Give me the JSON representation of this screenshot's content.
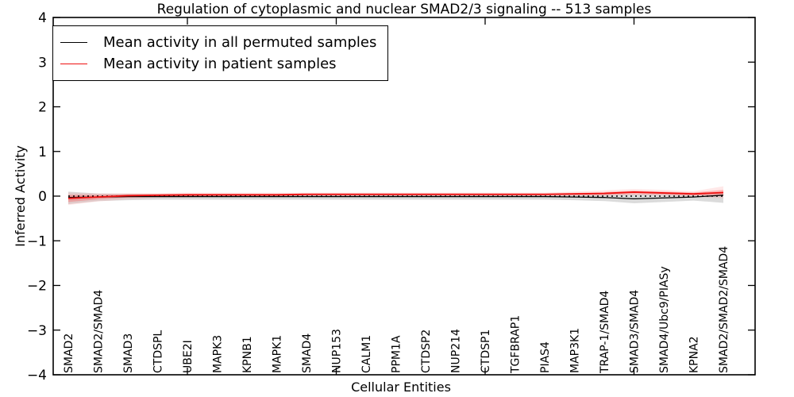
{
  "title": "Regulation of cytoplasmic and nuclear SMAD2/3 signaling -- 513 samples",
  "chart_data": {
    "type": "line",
    "title": "Regulation of cytoplasmic and nuclear SMAD2/3 signaling -- 513 samples",
    "xlabel": "Cellular Entities",
    "ylabel": "Inferred Activity",
    "ylim": [
      -4,
      4
    ],
    "yticks": [
      -4,
      -3,
      -2,
      -1,
      0,
      1,
      2,
      3,
      4
    ],
    "ytick_labels": [
      "−4",
      "−3",
      "−2",
      "−1",
      "0",
      "1",
      "2",
      "3",
      "4"
    ],
    "grid": false,
    "legend_position": "upper left",
    "zero_line": {
      "show": true,
      "style": "dotted",
      "color": "#000000",
      "y": 0
    },
    "x_axis_tick_indices": [
      4,
      9,
      14,
      19
    ],
    "categories": [
      "SMAD2",
      "SMAD2/SMAD4",
      "SMAD3",
      "CTDSPL",
      "UBE2I",
      "MAPK3",
      "KPNB1",
      "MAPK1",
      "SMAD4",
      "NUP153",
      "CALM1",
      "PPM1A",
      "CTDSP2",
      "NUP214",
      "CTDSP1",
      "TGFBRAP1",
      "PIAS4",
      "MAP3K1",
      "TRAP-1/SMAD4",
      "SMAD3/SMAD4",
      "SMAD4/Ubc9/PIASy",
      "KPNA2",
      "SMAD2/SMAD2/SMAD4"
    ],
    "series": [
      {
        "name": "Mean activity in all permuted samples",
        "color": "#000000",
        "line_style": "solid",
        "values": [
          -0.03,
          -0.02,
          -0.01,
          -0.01,
          -0.01,
          -0.01,
          -0.01,
          -0.01,
          -0.01,
          -0.01,
          -0.01,
          -0.01,
          -0.01,
          -0.01,
          -0.01,
          -0.01,
          -0.01,
          -0.02,
          -0.03,
          -0.06,
          -0.04,
          -0.02,
          0.02
        ],
        "band": {
          "color": "#7f7f7f",
          "opacity": 0.28,
          "upper": [
            0.1,
            0.06,
            0.05,
            0.04,
            0.04,
            0.04,
            0.04,
            0.04,
            0.04,
            0.04,
            0.04,
            0.04,
            0.04,
            0.04,
            0.04,
            0.04,
            0.04,
            0.04,
            0.05,
            0.05,
            0.05,
            0.06,
            0.08
          ],
          "lower": [
            -0.18,
            -0.11,
            -0.09,
            -0.08,
            -0.08,
            -0.08,
            -0.08,
            -0.08,
            -0.08,
            -0.08,
            -0.08,
            -0.08,
            -0.08,
            -0.08,
            -0.08,
            -0.08,
            -0.08,
            -0.09,
            -0.11,
            -0.16,
            -0.13,
            -0.1,
            -0.15
          ]
        }
      },
      {
        "name": "Mean activity in patient samples",
        "color": "#ee1111",
        "line_style": "solid",
        "values": [
          -0.05,
          -0.02,
          0.01,
          0.02,
          0.03,
          0.03,
          0.03,
          0.03,
          0.04,
          0.04,
          0.04,
          0.04,
          0.04,
          0.04,
          0.04,
          0.04,
          0.04,
          0.05,
          0.06,
          0.09,
          0.07,
          0.05,
          0.08
        ],
        "band": {
          "color": "#ff3b3b",
          "opacity": 0.3,
          "upper": [
            0.03,
            0.03,
            0.04,
            0.05,
            0.05,
            0.05,
            0.05,
            0.05,
            0.06,
            0.06,
            0.06,
            0.06,
            0.06,
            0.06,
            0.06,
            0.06,
            0.06,
            0.07,
            0.09,
            0.12,
            0.1,
            0.08,
            0.14
          ],
          "lower": [
            -0.13,
            -0.07,
            -0.03,
            -0.01,
            0.0,
            0.01,
            0.01,
            0.01,
            0.02,
            0.02,
            0.02,
            0.02,
            0.02,
            0.02,
            0.02,
            0.02,
            0.02,
            0.03,
            0.03,
            0.05,
            0.04,
            0.02,
            0.02
          ]
        },
        "outer_band": {
          "color": "#ff8080",
          "opacity": 0.18,
          "upper": [
            0.08,
            0.06,
            0.07,
            0.07,
            0.08,
            0.08,
            0.08,
            0.08,
            0.08,
            0.08,
            0.08,
            0.08,
            0.08,
            0.08,
            0.08,
            0.08,
            0.08,
            0.1,
            0.13,
            0.16,
            0.14,
            0.11,
            0.22
          ],
          "lower": [
            -0.2,
            -0.12,
            -0.07,
            -0.04,
            -0.03,
            -0.02,
            -0.02,
            -0.02,
            -0.01,
            -0.01,
            -0.01,
            -0.01,
            -0.01,
            -0.01,
            -0.01,
            -0.01,
            -0.01,
            0.0,
            0.0,
            0.02,
            0.01,
            -0.02,
            -0.05
          ]
        }
      }
    ]
  },
  "legend": {
    "entries": [
      {
        "label": "Mean activity in all permuted samples",
        "color": "#000000"
      },
      {
        "label": "Mean activity in patient samples",
        "color": "#ee1111"
      }
    ]
  }
}
